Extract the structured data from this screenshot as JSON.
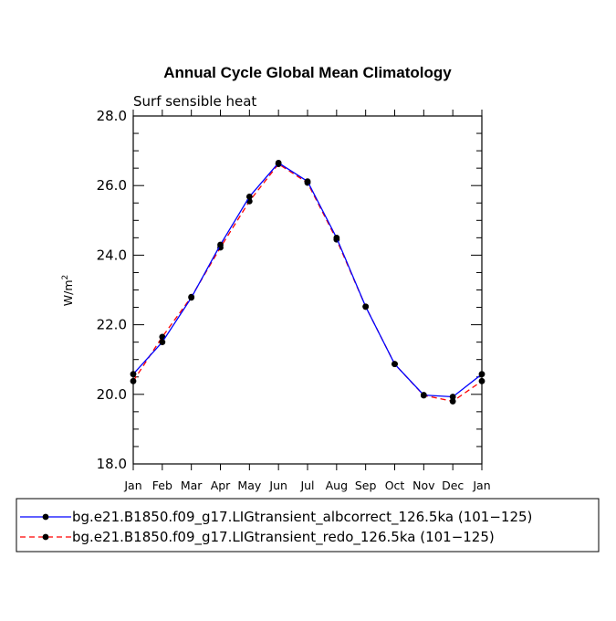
{
  "chart_data": {
    "type": "line",
    "title": "Annual Cycle Global Mean Climatology",
    "subtitle": "Surf sensible heat",
    "ylabel": "W/m",
    "ylabel_superscript": "2",
    "xlabel": "",
    "categories": [
      "Jan",
      "Feb",
      "Mar",
      "Apr",
      "May",
      "Jun",
      "Jul",
      "Aug",
      "Sep",
      "Oct",
      "Nov",
      "Dec",
      "Jan"
    ],
    "ylim": [
      18.0,
      28.0
    ],
    "yticks": [
      "18.0",
      "20.0",
      "22.0",
      "24.0",
      "26.0",
      "28.0"
    ],
    "grid": false,
    "legend_position": "bottom",
    "series": [
      {
        "name": "bg.e21.B1850.f09_g17.LIGtransient_albcorrect_126.5ka (101−125)",
        "color": "#0000ff",
        "style": "solid",
        "values": [
          20.58,
          21.5,
          22.78,
          24.3,
          25.68,
          26.65,
          26.12,
          24.5,
          22.52,
          20.87,
          19.98,
          19.93,
          20.58
        ]
      },
      {
        "name": "bg.e21.B1850.f09_g17.LIGtransient_redo_126.5ka (101−125)",
        "color": "#ff0000",
        "style": "dashed",
        "values": [
          20.38,
          21.65,
          22.8,
          24.22,
          25.55,
          26.62,
          26.08,
          24.45,
          22.52,
          20.87,
          19.97,
          19.8,
          20.38
        ]
      }
    ]
  }
}
